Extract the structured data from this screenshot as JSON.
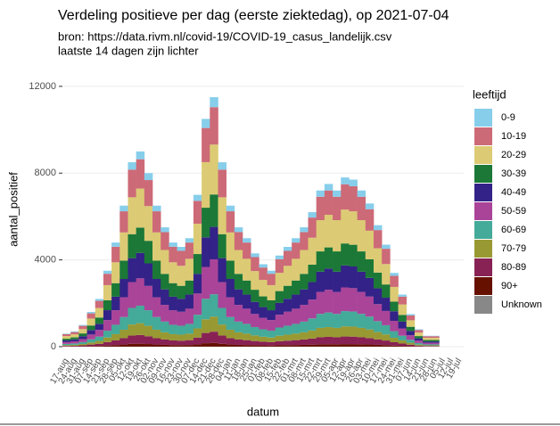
{
  "chart_data": {
    "type": "bar",
    "stacked": true,
    "title": "Verdeling positieve per dag (eerste ziektedag), op 2021-07-04",
    "subtitle": [
      "bron: https://data.rivm.nl/covid-19/COVID-19_casus_landelijk.csv",
      "laatste 14 dagen zijn lichter"
    ],
    "x_label": "datum",
    "y_label": "aantal_positief",
    "legend_title": "leeftijd",
    "legend_position": "right",
    "grid": true,
    "ylim": [
      -330,
      12900
    ],
    "yticks": [
      0,
      4000,
      8000,
      12000
    ],
    "categories": [
      "17-aug",
      "24-aug",
      "31-aug",
      "07-sep",
      "14-sep",
      "21-sep",
      "28-sep",
      "05-okt",
      "12-okt",
      "19-okt",
      "26-okt",
      "02-nov",
      "09-nov",
      "16-nov",
      "23-nov",
      "30-nov",
      "07-dec",
      "14-dec",
      "21-dec",
      "28-dec",
      "04-jan",
      "11-jan",
      "18-jan",
      "25-jan",
      "01-feb",
      "08-feb",
      "15-feb",
      "22-feb",
      "01-mrt",
      "08-mrt",
      "15-mrt",
      "22-mrt",
      "29-mrt",
      "05-apr",
      "12-apr",
      "19-apr",
      "26-apr",
      "03-mei",
      "10-mei",
      "17-mei",
      "24-mei",
      "31-mei",
      "07-jun",
      "14-jun",
      "21-jun",
      "28-jun",
      "05-jul",
      "12-jul",
      "19-jul"
    ],
    "series": [
      {
        "name": "0-9",
        "color": "#87ceeb",
        "values": [
          24,
          28,
          40,
          64,
          88,
          140,
          192,
          260,
          340,
          360,
          320,
          260,
          220,
          192,
          184,
          200,
          280,
          420,
          460,
          340,
          260,
          220,
          200,
          172,
          152,
          140,
          168,
          184,
          200,
          220,
          248,
          288,
          300,
          288,
          312,
          308,
          288,
          264,
          224,
          188,
          136,
          96,
          60,
          32,
          20,
          20,
          null,
          null,
          null
        ]
      },
      {
        "name": "10-19",
        "color": "#cd6a77",
        "values": [
          90,
          105,
          150,
          240,
          330,
          525,
          720,
          975,
          1275,
          1350,
          1200,
          975,
          825,
          720,
          690,
          750,
          1050,
          1575,
          1725,
          1275,
          975,
          825,
          750,
          645,
          570,
          525,
          630,
          690,
          750,
          825,
          930,
          1080,
          1125,
          1080,
          1170,
          1155,
          1080,
          990,
          840,
          705,
          510,
          360,
          225,
          120,
          75,
          75,
          null,
          null,
          null
        ]
      },
      {
        "name": "20-29",
        "color": "#dccb74",
        "values": [
          120,
          140,
          200,
          320,
          440,
          700,
          960,
          1300,
          1700,
          1800,
          1600,
          1300,
          1100,
          960,
          920,
          1000,
          1400,
          2100,
          2300,
          1700,
          1300,
          1100,
          1000,
          860,
          760,
          700,
          840,
          920,
          1000,
          1100,
          1240,
          1440,
          1500,
          1440,
          1560,
          1540,
          1440,
          1320,
          1120,
          940,
          680,
          480,
          300,
          160,
          100,
          100,
          null,
          null,
          null
        ]
      },
      {
        "name": "30-39",
        "color": "#1b7837",
        "values": [
          78,
          91,
          130,
          208,
          286,
          455,
          624,
          845,
          1105,
          1170,
          1040,
          845,
          715,
          624,
          598,
          650,
          910,
          1365,
          1495,
          1105,
          845,
          715,
          650,
          559,
          494,
          455,
          546,
          598,
          650,
          715,
          806,
          936,
          975,
          936,
          1014,
          1001,
          936,
          858,
          728,
          611,
          442,
          312,
          195,
          104,
          65,
          65,
          null,
          null,
          null
        ]
      },
      {
        "name": "40-49",
        "color": "#332288",
        "values": [
          78,
          91,
          130,
          208,
          286,
          455,
          624,
          845,
          1105,
          1170,
          1040,
          845,
          715,
          624,
          598,
          650,
          910,
          1365,
          1495,
          1105,
          845,
          715,
          650,
          559,
          494,
          455,
          546,
          598,
          650,
          715,
          806,
          936,
          975,
          936,
          1014,
          1001,
          936,
          858,
          728,
          611,
          442,
          312,
          195,
          104,
          65,
          65,
          null,
          null,
          null
        ]
      },
      {
        "name": "50-59",
        "color": "#aa4499",
        "values": [
          84,
          98,
          140,
          224,
          308,
          490,
          672,
          910,
          1190,
          1260,
          1120,
          910,
          770,
          672,
          644,
          700,
          980,
          1470,
          1610,
          1190,
          910,
          770,
          700,
          602,
          532,
          490,
          588,
          644,
          700,
          770,
          868,
          1008,
          1050,
          1008,
          1092,
          1078,
          1008,
          924,
          784,
          658,
          476,
          336,
          210,
          112,
          70,
          70,
          null,
          null,
          null
        ]
      },
      {
        "name": "60-69",
        "color": "#44aa99",
        "values": [
          54,
          63,
          90,
          144,
          198,
          315,
          432,
          585,
          765,
          810,
          720,
          585,
          495,
          432,
          414,
          450,
          630,
          945,
          1035,
          765,
          585,
          495,
          450,
          387,
          342,
          315,
          378,
          414,
          450,
          495,
          558,
          648,
          675,
          648,
          702,
          693,
          648,
          594,
          504,
          423,
          306,
          216,
          135,
          72,
          45,
          45,
          null,
          null,
          null
        ]
      },
      {
        "name": "70-79",
        "color": "#999933",
        "values": [
          36,
          42,
          60,
          96,
          132,
          210,
          288,
          390,
          510,
          540,
          480,
          390,
          330,
          288,
          276,
          300,
          420,
          630,
          690,
          510,
          390,
          330,
          300,
          258,
          228,
          210,
          252,
          276,
          300,
          330,
          372,
          432,
          450,
          432,
          468,
          462,
          432,
          396,
          336,
          282,
          204,
          144,
          90,
          48,
          30,
          30,
          null,
          null,
          null
        ]
      },
      {
        "name": "80-89",
        "color": "#882255",
        "values": [
          27,
          32,
          45,
          72,
          99,
          158,
          216,
          293,
          383,
          405,
          360,
          293,
          248,
          216,
          207,
          225,
          315,
          473,
          518,
          383,
          293,
          248,
          225,
          194,
          171,
          158,
          189,
          207,
          225,
          248,
          279,
          324,
          338,
          324,
          351,
          347,
          324,
          297,
          252,
          212,
          153,
          108,
          68,
          36,
          23,
          23,
          null,
          null,
          null
        ]
      },
      {
        "name": "90+",
        "color": "#661100",
        "values": [
          9,
          11,
          15,
          24,
          33,
          53,
          72,
          98,
          128,
          135,
          120,
          98,
          83,
          72,
          69,
          75,
          105,
          158,
          173,
          128,
          98,
          83,
          75,
          65,
          57,
          53,
          63,
          69,
          75,
          83,
          93,
          108,
          113,
          108,
          117,
          116,
          108,
          99,
          84,
          71,
          51,
          36,
          23,
          12,
          8,
          8,
          null,
          null,
          null
        ]
      },
      {
        "name": "Unknown",
        "color": "#888888",
        "values": [
          0,
          0,
          0,
          0,
          0,
          0,
          0,
          0,
          0,
          0,
          0,
          0,
          0,
          0,
          0,
          0,
          0,
          0,
          0,
          0,
          0,
          0,
          0,
          0,
          0,
          0,
          0,
          0,
          0,
          0,
          0,
          0,
          0,
          0,
          0,
          0,
          0,
          0,
          0,
          0,
          0,
          0,
          0,
          0,
          0,
          0,
          null,
          null,
          null
        ]
      }
    ]
  }
}
